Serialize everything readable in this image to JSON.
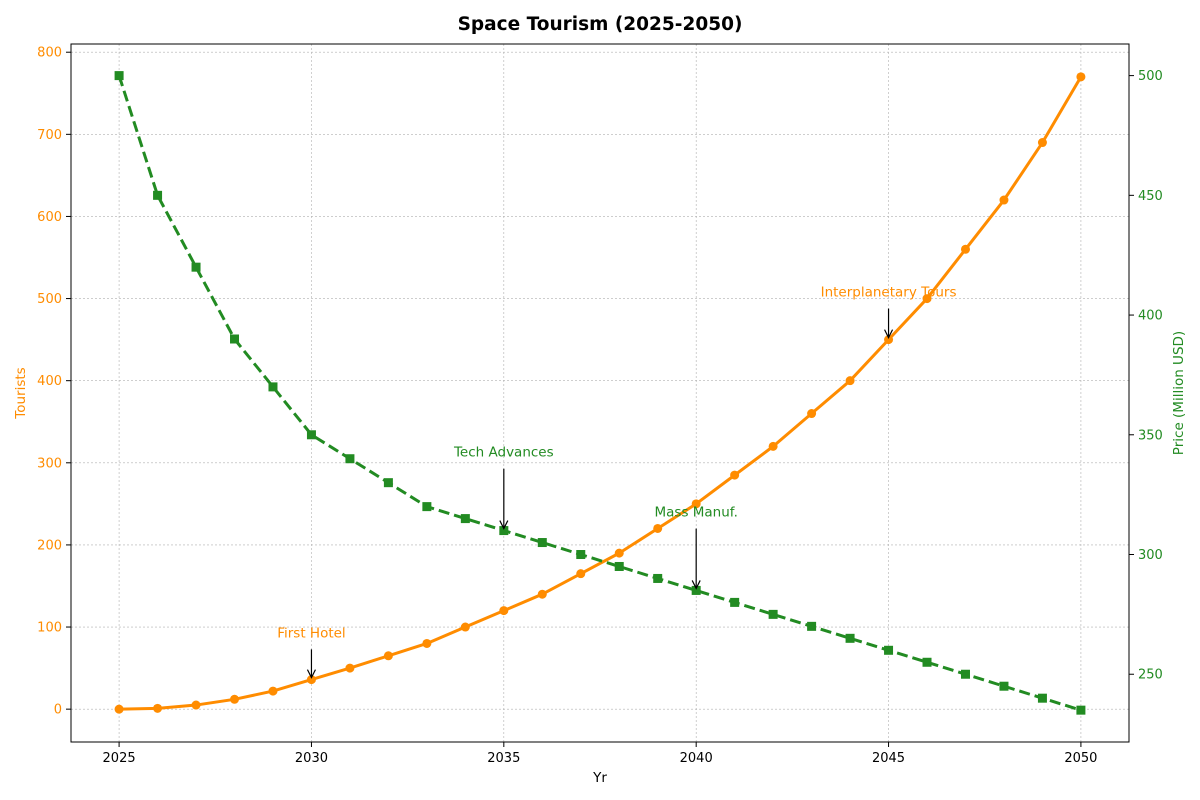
{
  "chart_data": {
    "type": "line",
    "title": "Space Tourism (2025-2050)",
    "xlabel": "Yr",
    "ylabel_left": "Tourists",
    "ylabel_right": "Price (Million USD)",
    "x": [
      2025,
      2026,
      2027,
      2028,
      2029,
      2030,
      2031,
      2032,
      2033,
      2034,
      2035,
      2036,
      2037,
      2038,
      2039,
      2040,
      2041,
      2042,
      2043,
      2044,
      2045,
      2046,
      2047,
      2048,
      2049,
      2050
    ],
    "xlim": [
      2023.75,
      2051.25
    ],
    "xticks": [
      2025,
      2030,
      2035,
      2040,
      2045,
      2050
    ],
    "ylim_left": [
      -40,
      810
    ],
    "yticks_left": [
      0,
      100,
      200,
      300,
      400,
      500,
      600,
      700,
      800
    ],
    "ylim_right": [
      221.7,
      513.2
    ],
    "yticks_right": [
      250,
      300,
      350,
      400,
      450,
      500
    ],
    "grid": true,
    "series": [
      {
        "axis": "left",
        "color": "#ff8c00",
        "marker": "circle",
        "linestyle": "solid",
        "values": [
          0,
          1,
          5,
          12,
          22,
          36,
          50,
          65,
          80,
          100,
          120,
          140,
          165,
          190,
          220,
          250,
          285,
          320,
          360,
          400,
          450,
          500,
          560,
          620,
          690,
          770
        ]
      },
      {
        "axis": "right",
        "color": "#228b22",
        "marker": "square",
        "linestyle": "dashed",
        "values": [
          500,
          450,
          420,
          390,
          370,
          350,
          340,
          330,
          320,
          315,
          310,
          305,
          300,
          295,
          290,
          285,
          280,
          275,
          270,
          265,
          260,
          255,
          250,
          245,
          240,
          235
        ]
      }
    ],
    "annotations": [
      {
        "text": "First Hotel",
        "x": 2030,
        "axis": "left",
        "y": 36,
        "text_y": 85,
        "color": "#ff8c00"
      },
      {
        "text": "Tech Advances",
        "x": 2035,
        "axis": "right",
        "y": 310,
        "text_y": 340,
        "color": "#228b22"
      },
      {
        "text": "Mass Manuf.",
        "x": 2040,
        "axis": "right",
        "y": 285,
        "text_y": 315,
        "color": "#228b22"
      },
      {
        "text": "Interplanetary Tours",
        "x": 2045,
        "axis": "left",
        "y": 450,
        "text_y": 500,
        "color": "#ff8c00"
      }
    ],
    "colors": {
      "left_axis": "#ff8c00",
      "right_axis": "#228b22"
    }
  }
}
